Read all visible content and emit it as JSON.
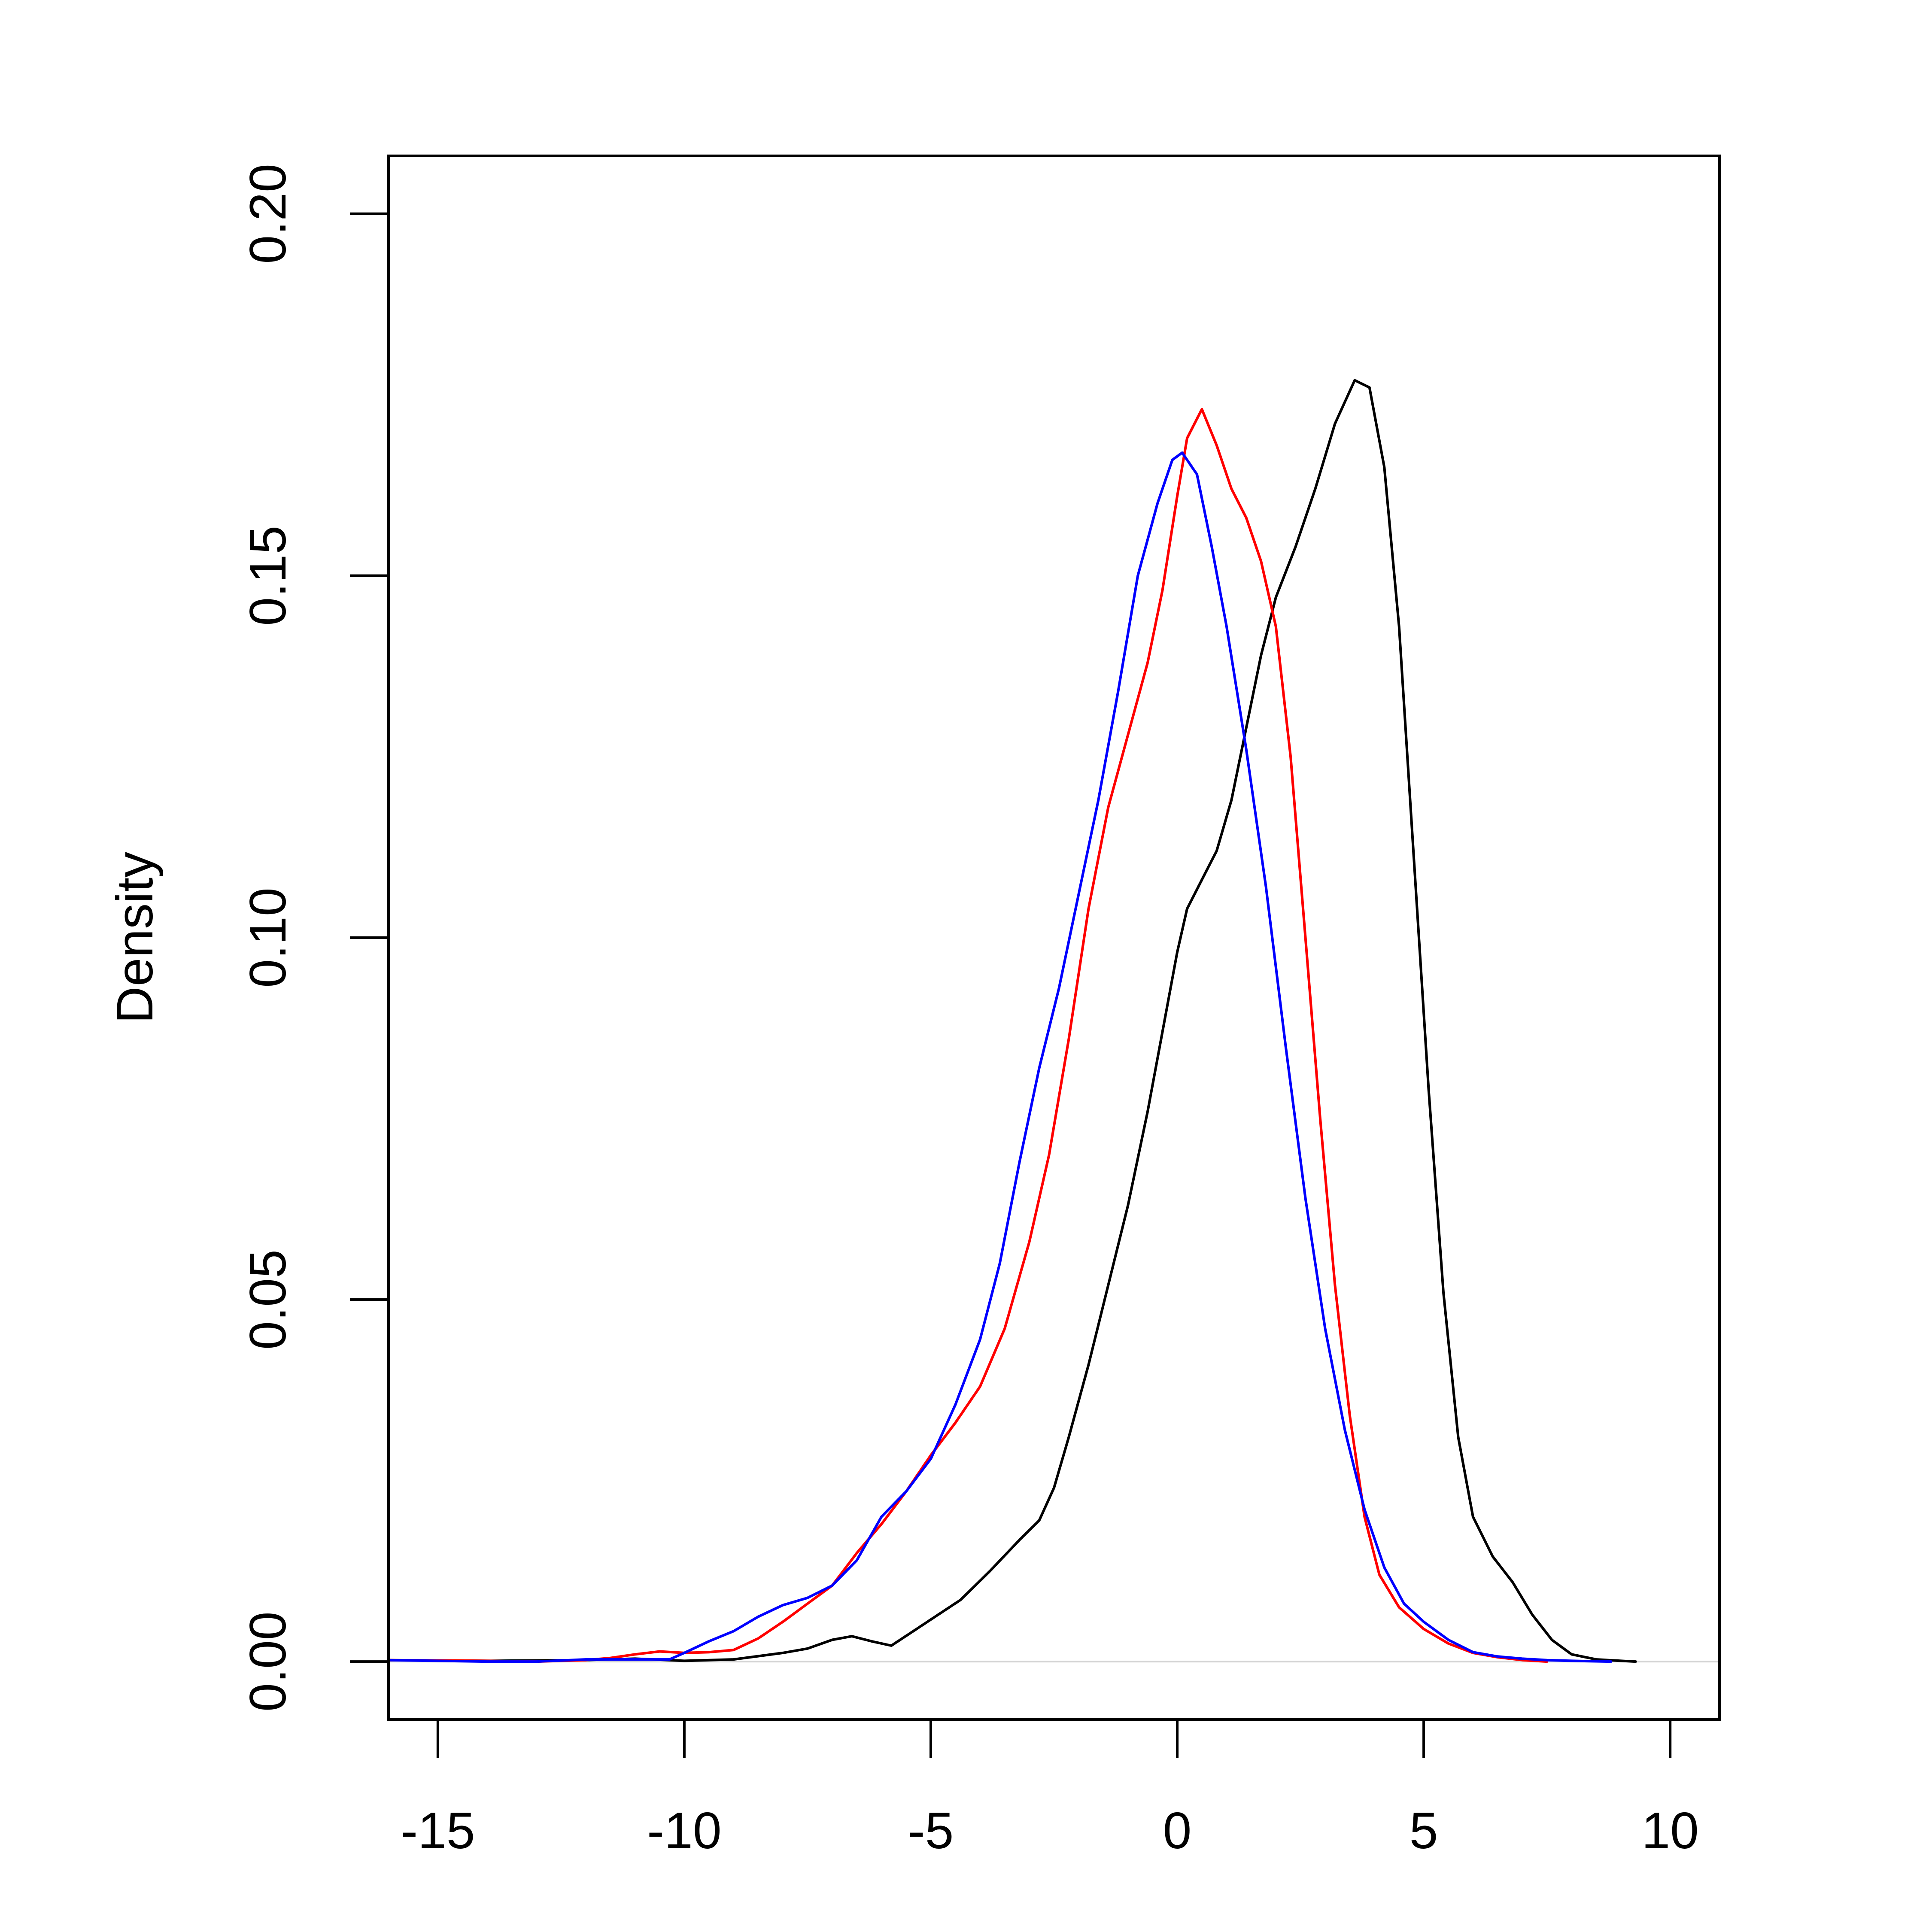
{
  "chart_data": {
    "type": "line",
    "title": "",
    "xlabel": "",
    "ylabel": "Density",
    "xlim": [
      -16,
      11
    ],
    "ylim": [
      -0.008,
      0.208
    ],
    "x_ticks": [
      -15,
      -10,
      -5,
      0,
      5,
      10
    ],
    "x_tick_labels": [
      "-15",
      "-10",
      "-5",
      "0",
      "5",
      "10"
    ],
    "y_ticks": [
      0.0,
      0.05,
      0.1,
      0.15,
      0.2
    ],
    "y_tick_labels": [
      "0.00",
      "0.05",
      "0.10",
      "0.15",
      "0.20"
    ],
    "grid": false,
    "legend": "none",
    "baseline": {
      "y": 0,
      "color": "#d3d3d3"
    },
    "series": [
      {
        "color": "#000000",
        "points": [
          [
            -16.0,
            0.0002
          ],
          [
            -14.0,
            0.0001
          ],
          [
            -12.0,
            0.0002
          ],
          [
            -11.0,
            0.0004
          ],
          [
            -10.0,
            0.0001
          ],
          [
            -9.0,
            0.0003
          ],
          [
            -8.0,
            0.0012
          ],
          [
            -7.5,
            0.0018
          ],
          [
            -7.0,
            0.003
          ],
          [
            -6.6,
            0.0035
          ],
          [
            -6.2,
            0.0028
          ],
          [
            -5.8,
            0.0022
          ],
          [
            -5.4,
            0.004
          ],
          [
            -5.0,
            0.0058
          ],
          [
            -4.4,
            0.0085
          ],
          [
            -3.8,
            0.0125
          ],
          [
            -3.2,
            0.0168
          ],
          [
            -2.8,
            0.0195
          ],
          [
            -2.5,
            0.024
          ],
          [
            -2.2,
            0.031
          ],
          [
            -1.8,
            0.041
          ],
          [
            -1.4,
            0.052
          ],
          [
            -1.0,
            0.063
          ],
          [
            -0.6,
            0.076
          ],
          [
            -0.3,
            0.087
          ],
          [
            0.0,
            0.098
          ],
          [
            0.2,
            0.104
          ],
          [
            0.5,
            0.108
          ],
          [
            0.8,
            0.112
          ],
          [
            1.1,
            0.119
          ],
          [
            1.4,
            0.129
          ],
          [
            1.7,
            0.139
          ],
          [
            2.0,
            0.147
          ],
          [
            2.4,
            0.154
          ],
          [
            2.8,
            0.162
          ],
          [
            3.2,
            0.171
          ],
          [
            3.6,
            0.177
          ],
          [
            3.9,
            0.176
          ],
          [
            4.2,
            0.165
          ],
          [
            4.5,
            0.143
          ],
          [
            4.8,
            0.111
          ],
          [
            5.1,
            0.079
          ],
          [
            5.4,
            0.051
          ],
          [
            5.7,
            0.031
          ],
          [
            6.0,
            0.02
          ],
          [
            6.4,
            0.0145
          ],
          [
            6.8,
            0.011
          ],
          [
            7.2,
            0.0065
          ],
          [
            7.6,
            0.003
          ],
          [
            8.0,
            0.001
          ],
          [
            8.5,
            0.0003
          ],
          [
            9.0,
            0.0001
          ],
          [
            9.3,
            0.0
          ]
        ]
      },
      {
        "color": "#ff0000",
        "points": [
          [
            -16.0,
            0.0002
          ],
          [
            -14.0,
            0.0001
          ],
          [
            -13.0,
            0.0
          ],
          [
            -12.0,
            0.0002
          ],
          [
            -11.5,
            0.0005
          ],
          [
            -11.0,
            0.001
          ],
          [
            -10.5,
            0.0014
          ],
          [
            -10.0,
            0.0012
          ],
          [
            -9.5,
            0.0013
          ],
          [
            -9.0,
            0.0016
          ],
          [
            -8.5,
            0.0032
          ],
          [
            -8.0,
            0.0055
          ],
          [
            -7.5,
            0.008
          ],
          [
            -7.0,
            0.0105
          ],
          [
            -6.5,
            0.015
          ],
          [
            -6.0,
            0.019
          ],
          [
            -5.5,
            0.0235
          ],
          [
            -5.0,
            0.0285
          ],
          [
            -4.5,
            0.033
          ],
          [
            -4.0,
            0.038
          ],
          [
            -3.5,
            0.046
          ],
          [
            -3.0,
            0.058
          ],
          [
            -2.6,
            0.07
          ],
          [
            -2.2,
            0.086
          ],
          [
            -1.8,
            0.104
          ],
          [
            -1.4,
            0.118
          ],
          [
            -1.0,
            0.128
          ],
          [
            -0.6,
            0.138
          ],
          [
            -0.3,
            0.148
          ],
          [
            0.0,
            0.161
          ],
          [
            0.2,
            0.169
          ],
          [
            0.5,
            0.173
          ],
          [
            0.8,
            0.168
          ],
          [
            1.1,
            0.162
          ],
          [
            1.4,
            0.158
          ],
          [
            1.7,
            0.152
          ],
          [
            2.0,
            0.143
          ],
          [
            2.3,
            0.125
          ],
          [
            2.6,
            0.1
          ],
          [
            2.9,
            0.075
          ],
          [
            3.2,
            0.052
          ],
          [
            3.5,
            0.034
          ],
          [
            3.8,
            0.02
          ],
          [
            4.1,
            0.012
          ],
          [
            4.5,
            0.0075
          ],
          [
            5.0,
            0.0045
          ],
          [
            5.5,
            0.0025
          ],
          [
            6.0,
            0.0012
          ],
          [
            6.5,
            0.0006
          ],
          [
            7.0,
            0.0002
          ],
          [
            7.5,
            0.0
          ]
        ]
      },
      {
        "color": "#0000ff",
        "points": [
          [
            -16.0,
            0.0002
          ],
          [
            -14.0,
            0.0
          ],
          [
            -13.0,
            0.0
          ],
          [
            -12.0,
            0.0003
          ],
          [
            -11.0,
            0.0003
          ],
          [
            -10.3,
            0.0003
          ],
          [
            -10.0,
            0.0012
          ],
          [
            -9.5,
            0.0028
          ],
          [
            -9.0,
            0.0042
          ],
          [
            -8.5,
            0.0062
          ],
          [
            -8.0,
            0.0078
          ],
          [
            -7.5,
            0.0088
          ],
          [
            -7.0,
            0.0105
          ],
          [
            -6.5,
            0.014
          ],
          [
            -6.0,
            0.02
          ],
          [
            -5.5,
            0.0235
          ],
          [
            -5.0,
            0.028
          ],
          [
            -4.5,
            0.0355
          ],
          [
            -4.0,
            0.0445
          ],
          [
            -3.6,
            0.055
          ],
          [
            -3.2,
            0.069
          ],
          [
            -2.8,
            0.082
          ],
          [
            -2.4,
            0.093
          ],
          [
            -2.0,
            0.106
          ],
          [
            -1.6,
            0.119
          ],
          [
            -1.2,
            0.134
          ],
          [
            -0.8,
            0.15
          ],
          [
            -0.4,
            0.16
          ],
          [
            -0.1,
            0.166
          ],
          [
            0.1,
            0.167
          ],
          [
            0.4,
            0.164
          ],
          [
            0.7,
            0.154
          ],
          [
            1.0,
            0.143
          ],
          [
            1.4,
            0.126
          ],
          [
            1.8,
            0.107
          ],
          [
            2.2,
            0.085
          ],
          [
            2.6,
            0.064
          ],
          [
            3.0,
            0.046
          ],
          [
            3.4,
            0.032
          ],
          [
            3.8,
            0.021
          ],
          [
            4.2,
            0.013
          ],
          [
            4.6,
            0.008
          ],
          [
            5.0,
            0.0055
          ],
          [
            5.5,
            0.003
          ],
          [
            6.0,
            0.0013
          ],
          [
            6.5,
            0.0007
          ],
          [
            7.0,
            0.0004
          ],
          [
            7.5,
            0.0002
          ],
          [
            8.0,
            0.0001
          ],
          [
            8.8,
            0.0
          ]
        ]
      }
    ]
  }
}
